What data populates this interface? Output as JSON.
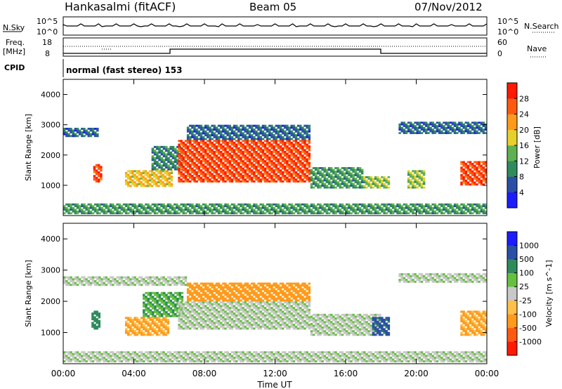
{
  "header": {
    "station": "Hankasalmi (fitACF)",
    "beam": "Beam 05",
    "date": "07/Nov/2012"
  },
  "panels": {
    "nsky": {
      "label": "N.Sky",
      "tick_top": "10^5",
      "tick_bottom": "10^0",
      "right_label": "N.Search",
      "right_tick_top": "10^5",
      "right_tick_bottom": "10^0"
    },
    "freq": {
      "label_line1": "Freq.",
      "label_line2": "[MHz]",
      "tick_top": "18",
      "tick_bottom": "8",
      "right_label": "Nave",
      "right_tick_top": "60",
      "right_tick_bottom": "0"
    },
    "cpid": {
      "label": "CPID",
      "value": "normal (fast stereo) 153"
    }
  },
  "colors": {
    "power": [
      "#1c1cff",
      "#2a4fa6",
      "#2f8a5c",
      "#5fb050",
      "#e8d02a",
      "#ff9a1a",
      "#ff5a10",
      "#ff1a00"
    ],
    "velocity": [
      "#ff1a00",
      "#ff5a10",
      "#ff9a1a",
      "#ffc04a",
      "#c8c8c8",
      "#66c040",
      "#2f8a5c",
      "#2a4fa6",
      "#1c1cff"
    ]
  },
  "chart_data": [
    {
      "type": "heatmap",
      "name": "power",
      "ylabel": "Slant Range [km]",
      "y_ticks": [
        "1000",
        "2000",
        "3000",
        "4000"
      ],
      "ylim": [
        0,
        4500
      ],
      "colorbar_label": "Power [dB]",
      "colorbar_ticks": [
        "4",
        "8",
        "12",
        "16",
        "20",
        "24",
        "28"
      ],
      "colorbar_range": [
        0,
        32
      ],
      "regions": [
        {
          "t": [
            0.0,
            2.0
          ],
          "r": [
            2600,
            2900
          ],
          "v": 6
        },
        {
          "t": [
            1.7,
            2.2
          ],
          "r": [
            1100,
            1700
          ],
          "v": 26
        },
        {
          "t": [
            3.5,
            6.2
          ],
          "r": [
            950,
            1500
          ],
          "v": 18
        },
        {
          "t": [
            5.0,
            6.8
          ],
          "r": [
            1500,
            2300
          ],
          "v": 8
        },
        {
          "t": [
            6.5,
            14.0
          ],
          "r": [
            1100,
            2500
          ],
          "v": 26
        },
        {
          "t": [
            7.0,
            14.0
          ],
          "r": [
            2500,
            3000
          ],
          "v": 6
        },
        {
          "t": [
            14.0,
            17.0
          ],
          "r": [
            900,
            1600
          ],
          "v": 10
        },
        {
          "t": [
            17.0,
            18.5
          ],
          "r": [
            900,
            1300
          ],
          "v": 14
        },
        {
          "t": [
            19.5,
            20.5
          ],
          "r": [
            900,
            1500
          ],
          "v": 14
        },
        {
          "t": [
            22.5,
            24.0
          ],
          "r": [
            1000,
            1800
          ],
          "v": 26
        },
        {
          "t": [
            19.0,
            24.0
          ],
          "r": [
            2700,
            3100
          ],
          "v": 6
        },
        {
          "t": [
            0.0,
            24.0
          ],
          "r": [
            50,
            400
          ],
          "v": 10
        }
      ]
    },
    {
      "type": "heatmap",
      "name": "velocity",
      "ylabel": "Slant Range [km]",
      "y_ticks": [
        "1000",
        "2000",
        "3000",
        "4000"
      ],
      "ylim": [
        0,
        4500
      ],
      "colorbar_label": "Velocity [m s^-1]",
      "colorbar_ticks": [
        "1000",
        "500",
        "100",
        "25",
        "-25",
        "-100",
        "-500",
        "-1000"
      ],
      "regions": [
        {
          "t": [
            0.0,
            7.0
          ],
          "r": [
            2500,
            2800
          ],
          "v": 0
        },
        {
          "t": [
            1.6,
            2.1
          ],
          "r": [
            1100,
            1700
          ],
          "v": 150
        },
        {
          "t": [
            3.5,
            6.0
          ],
          "r": [
            900,
            1500
          ],
          "v": -150
        },
        {
          "t": [
            4.5,
            6.8
          ],
          "r": [
            1500,
            2300
          ],
          "v": 80
        },
        {
          "t": [
            6.5,
            14.0
          ],
          "r": [
            1100,
            2000
          ],
          "v": 0
        },
        {
          "t": [
            7.0,
            14.0
          ],
          "r": [
            2000,
            2600
          ],
          "v": -300
        },
        {
          "t": [
            14.0,
            18.0
          ],
          "r": [
            900,
            1600
          ],
          "v": 0
        },
        {
          "t": [
            17.5,
            18.5
          ],
          "r": [
            900,
            1500
          ],
          "v": 600
        },
        {
          "t": [
            22.5,
            24.0
          ],
          "r": [
            900,
            1700
          ],
          "v": -150
        },
        {
          "t": [
            19.0,
            24.0
          ],
          "r": [
            2600,
            2900
          ],
          "v": 0
        },
        {
          "t": [
            0.0,
            24.0
          ],
          "r": [
            50,
            400
          ],
          "v": 0
        }
      ]
    }
  ],
  "x_axis": {
    "label": "Time UT",
    "ticks": [
      "00:00",
      "04:00",
      "08:00",
      "12:00",
      "16:00",
      "20:00",
      "00:00"
    ]
  }
}
